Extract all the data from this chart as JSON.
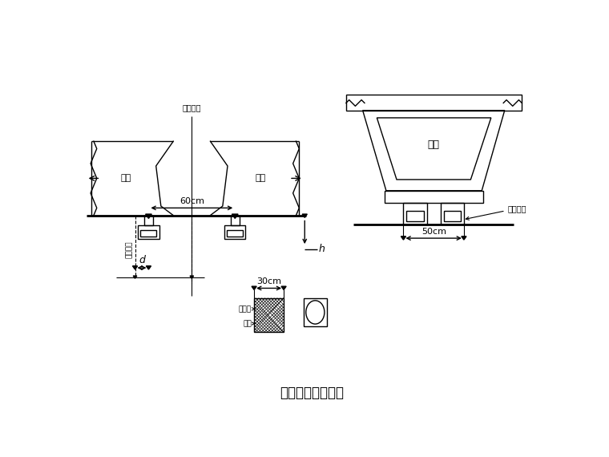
{
  "title": "非连续端临时支座",
  "bg_color": "#ffffff",
  "line_color": "#000000",
  "label_pier_center": "桥嵩中线",
  "label_beam": "主梁",
  "label_pier_edge": "桥嵩边线",
  "label_d": "d",
  "label_h": "h",
  "label_pad": "钒垄板",
  "label_sand": "细砂",
  "label_support": "临时垒座",
  "dim_60cm": "60cm",
  "dim_50cm": "50cm",
  "dim_30cm": "30cm"
}
